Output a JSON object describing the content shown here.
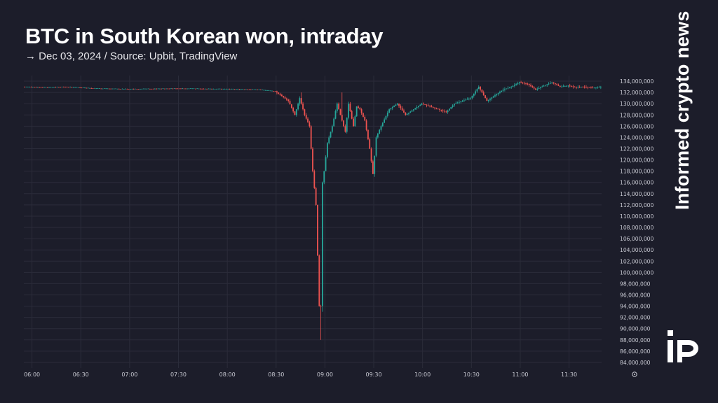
{
  "header": {
    "title": "BTC in South Korean won, intraday",
    "subtitle": "→ Dec 03, 2024 / Source: Upbit, TradingView"
  },
  "branding": {
    "vertical_text": "Informed crypto news",
    "logo_icon": "ip-logo-icon"
  },
  "colors": {
    "background": "#1c1d2a",
    "up": "#26a69a",
    "down": "#ef5350",
    "grid": "#2b2c3a",
    "axis_text": "#c8c9d2"
  },
  "chart_data": {
    "type": "candlestick",
    "title": "BTC in South Korean won, intraday",
    "subtitle": "→ Dec 03, 2024 / Source: Upbit, TradingView",
    "x_tick_labels": [
      "06:00",
      "06:30",
      "07:00",
      "07:30",
      "08:00",
      "08:30",
      "09:00",
      "09:30",
      "10:00",
      "10:30",
      "11:00",
      "11:30"
    ],
    "y_tick_labels": [
      "134,000,000",
      "132,000,000",
      "130,000,000",
      "128,000,000",
      "126,000,000",
      "124,000,000",
      "122,000,000",
      "120,000,000",
      "118,000,000",
      "116,000,000",
      "114,000,000",
      "112,000,000",
      "110,000,000",
      "108,000,000",
      "106,000,000",
      "104,000,000",
      "102,000,000",
      "100,000,000",
      "98,000,000",
      "96,000,000",
      "94,000,000",
      "92,000,000",
      "90,000,000",
      "88,000,000",
      "86,000,000",
      "84,000,000"
    ],
    "ylim": [
      83000000,
      135000000
    ],
    "xlim": [
      "05:55",
      "11:50"
    ],
    "grid": true,
    "price_path": [
      [
        "05:55",
        133000000
      ],
      [
        "06:10",
        132900000
      ],
      [
        "06:20",
        133000000
      ],
      [
        "06:40",
        132700000
      ],
      [
        "07:00",
        132600000
      ],
      [
        "07:30",
        132700000
      ],
      [
        "08:00",
        132600000
      ],
      [
        "08:20",
        132500000
      ],
      [
        "08:30",
        132200000
      ],
      [
        "08:38",
        130500000
      ],
      [
        "08:42",
        128000000
      ],
      [
        "08:45",
        131000000
      ],
      [
        "08:48",
        128000000
      ],
      [
        "08:51",
        126000000
      ],
      [
        "08:53",
        118000000
      ],
      [
        "08:55",
        112000000
      ],
      [
        "08:57",
        94000000
      ],
      [
        "08:58",
        94000000
      ],
      [
        "08:59",
        116000000
      ],
      [
        "09:00",
        118000000
      ],
      [
        "09:02",
        123000000
      ],
      [
        "09:05",
        126000000
      ],
      [
        "09:08",
        130000000
      ],
      [
        "09:10",
        128000000
      ],
      [
        "09:13",
        125000000
      ],
      [
        "09:15",
        130000000
      ],
      [
        "09:18",
        126000000
      ],
      [
        "09:20",
        129500000
      ],
      [
        "09:22",
        129000000
      ],
      [
        "09:25",
        127000000
      ],
      [
        "09:28",
        122000000
      ],
      [
        "09:30",
        117500000
      ],
      [
        "09:32",
        124000000
      ],
      [
        "09:35",
        126000000
      ],
      [
        "09:40",
        129000000
      ],
      [
        "09:45",
        130000000
      ],
      [
        "09:50",
        128000000
      ],
      [
        "09:55",
        129000000
      ],
      [
        "10:00",
        130000000
      ],
      [
        "10:10",
        129000000
      ],
      [
        "10:15",
        128500000
      ],
      [
        "10:20",
        130000000
      ],
      [
        "10:30",
        131000000
      ],
      [
        "10:35",
        133000000
      ],
      [
        "10:40",
        130500000
      ],
      [
        "10:45",
        131500000
      ],
      [
        "10:50",
        132500000
      ],
      [
        "10:55",
        133000000
      ],
      [
        "11:00",
        133800000
      ],
      [
        "11:05",
        133500000
      ],
      [
        "11:10",
        132500000
      ],
      [
        "11:15",
        133200000
      ],
      [
        "11:20",
        133800000
      ],
      [
        "11:25",
        133000000
      ],
      [
        "11:30",
        133200000
      ],
      [
        "11:35",
        132900000
      ],
      [
        "11:40",
        133000000
      ],
      [
        "11:45",
        132800000
      ],
      [
        "11:50",
        133000000
      ]
    ],
    "wicks": [
      {
        "time": "08:57",
        "low": 88000000
      },
      {
        "time": "08:58",
        "low": 93000000
      },
      {
        "time": "08:45",
        "high": 132000000
      },
      {
        "time": "09:10",
        "high": 132000000
      },
      {
        "time": "09:30",
        "low": 117000000
      }
    ]
  }
}
